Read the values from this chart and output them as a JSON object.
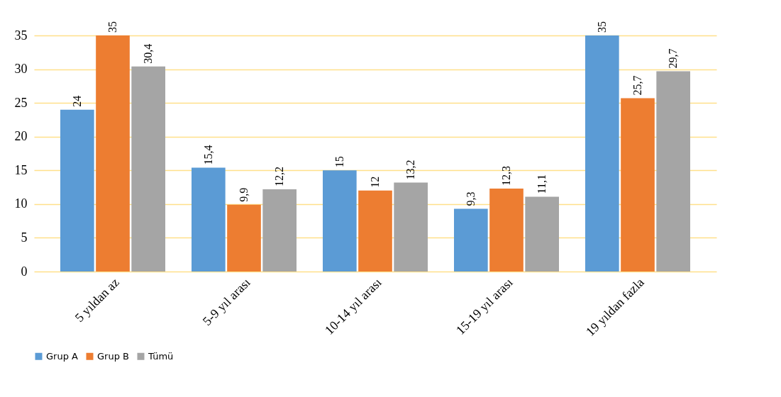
{
  "chart_data": {
    "type": "bar",
    "categories": [
      "5 yıldan az",
      "5-9 yıl arası",
      "10-14 yıl arası",
      "15-19 yıl arası",
      "19 yıldan fazla"
    ],
    "series": [
      {
        "name": "Grup A",
        "color": "#5b9bd5",
        "values": [
          24,
          15.4,
          15,
          9.3,
          35
        ],
        "value_labels": [
          "24",
          "15,4",
          "15",
          "9,3",
          "35"
        ]
      },
      {
        "name": "Grup B",
        "color": "#ed7d31",
        "values": [
          35,
          9.9,
          12,
          12.3,
          25.7
        ],
        "value_labels": [
          "35",
          "9,9",
          "12",
          "12,3",
          "25,7"
        ]
      },
      {
        "name": "Tümü",
        "color": "#a5a5a5",
        "values": [
          30.4,
          12.2,
          13.2,
          11.1,
          29.7
        ],
        "value_labels": [
          "30,4",
          "12,2",
          "13,2",
          "11,1",
          "29,7"
        ]
      }
    ],
    "ylim": [
      0,
      35
    ],
    "yticks": [
      0,
      5,
      10,
      15,
      20,
      25,
      30,
      35
    ],
    "grid": "y",
    "legend": "bottom"
  }
}
